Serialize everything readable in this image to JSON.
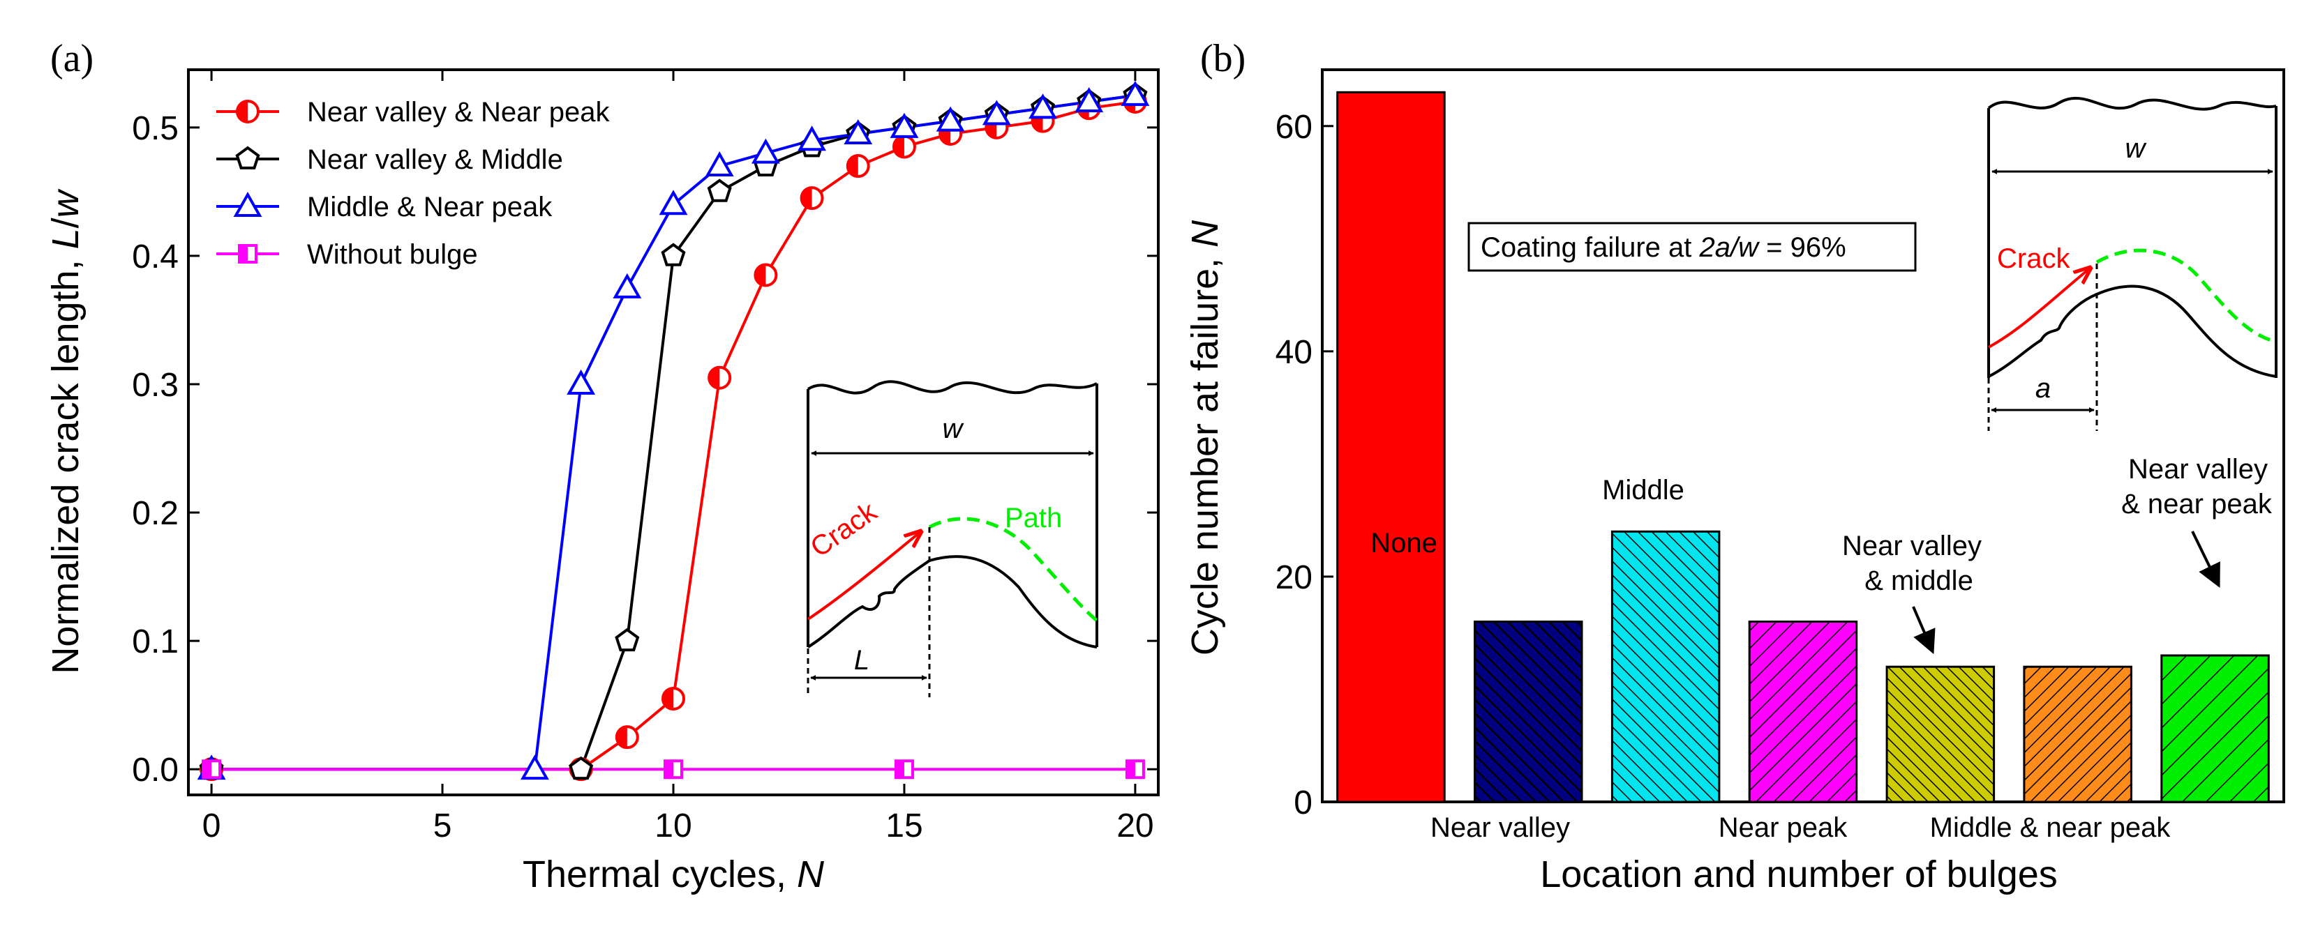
{
  "colors": {
    "red": "#ff0000",
    "black": "#000000",
    "blue": "#0000ff",
    "magenta": "#ff00ff",
    "green": "#00ee00",
    "navy": "#000080",
    "cyan": "#00e5ee",
    "yellow": "#cccc00",
    "orange": "#ff8c1a"
  },
  "chart_data": [
    {
      "panel": "(a)",
      "type": "line",
      "xlabel": "Thermal cycles, N",
      "ylabel": "Normalized crack length, L/w",
      "xlim": [
        -0.5,
        20.5
      ],
      "ylim": [
        -0.02,
        0.545
      ],
      "xticks": [
        0,
        5,
        10,
        15,
        20
      ],
      "yticks": [
        0.0,
        0.1,
        0.2,
        0.3,
        0.4,
        0.5
      ],
      "xtick_labels": [
        "0",
        "5",
        "10",
        "15",
        "20"
      ],
      "ytick_labels": [
        "0.0",
        "0.1",
        "0.2",
        "0.3",
        "0.4",
        "0.5"
      ],
      "legend_position": "top-left",
      "series": [
        {
          "name": "Near valley & Near peak",
          "color": "#ff0000",
          "marker": "half-filled-circle",
          "x": [
            0,
            8,
            9,
            10,
            11,
            12,
            13,
            14,
            15,
            16,
            17,
            18,
            19,
            20
          ],
          "y": [
            0,
            0,
            0.025,
            0.055,
            0.305,
            0.385,
            0.445,
            0.47,
            0.485,
            0.495,
            0.5,
            0.505,
            0.515,
            0.52
          ]
        },
        {
          "name": "Near valley & Middle",
          "color": "#000000",
          "marker": "pentagon",
          "x": [
            0,
            8,
            9,
            10,
            11,
            12,
            13,
            14,
            15,
            16,
            17,
            18,
            19,
            20
          ],
          "y": [
            0,
            0,
            0.1,
            0.4,
            0.45,
            0.47,
            0.485,
            0.495,
            0.5,
            0.505,
            0.51,
            0.515,
            0.52,
            0.525
          ]
        },
        {
          "name": "Middle & Near peak",
          "color": "#0000ff",
          "marker": "triangle",
          "x": [
            0,
            7,
            8,
            9,
            10,
            11,
            12,
            13,
            14,
            15,
            16,
            17,
            18,
            19,
            20
          ],
          "y": [
            0,
            0,
            0.3,
            0.375,
            0.44,
            0.47,
            0.48,
            0.49,
            0.495,
            0.5,
            0.505,
            0.51,
            0.515,
            0.52,
            0.525
          ]
        },
        {
          "name": "Without bulge",
          "color": "#ff00ff",
          "marker": "half-filled-square",
          "x": [
            0,
            10,
            15,
            20
          ],
          "y": [
            0,
            0,
            0,
            0
          ]
        }
      ],
      "inset": {
        "width_label": "w",
        "crack_label": "Crack",
        "path_label": "Path",
        "length_label": "L"
      }
    },
    {
      "panel": "(b)",
      "type": "bar",
      "xlabel": "Location and number of bulges",
      "ylabel": "Cycle number at failure, N",
      "ylim": [
        0,
        65
      ],
      "yticks": [
        0,
        20,
        40,
        60
      ],
      "ytick_labels": [
        "0",
        "20",
        "40",
        "60"
      ],
      "categories": [
        "None",
        "Near valley",
        "Middle",
        "Near peak",
        "Near valley & middle",
        "Middle & near peak",
        "Near valley & near peak"
      ],
      "values": [
        63,
        16,
        24,
        16,
        12,
        12,
        13
      ],
      "bar_colors": [
        "#ff0000",
        "#000080",
        "#00e5ee",
        "#ff00ff",
        "#cccc00",
        "#ff8c1a",
        "#00ee00"
      ],
      "bar_labels": {
        "none": "None",
        "near_valley": "Near valley",
        "middle": "Middle",
        "near_peak": "Near peak",
        "near_valley_middle_1": "Near valley",
        "near_valley_middle_2": "& middle",
        "middle_near_peak": "Middle & near peak",
        "near_valley_near_peak_1": "Near valley",
        "near_valley_near_peak_2": "& near peak"
      },
      "annotation": {
        "prefix": "Coating failure at ",
        "expr": "2a/w",
        "suffix": " = 96%"
      },
      "inset": {
        "width_label": "w",
        "crack_label": "Crack",
        "a_label": "a"
      }
    }
  ]
}
